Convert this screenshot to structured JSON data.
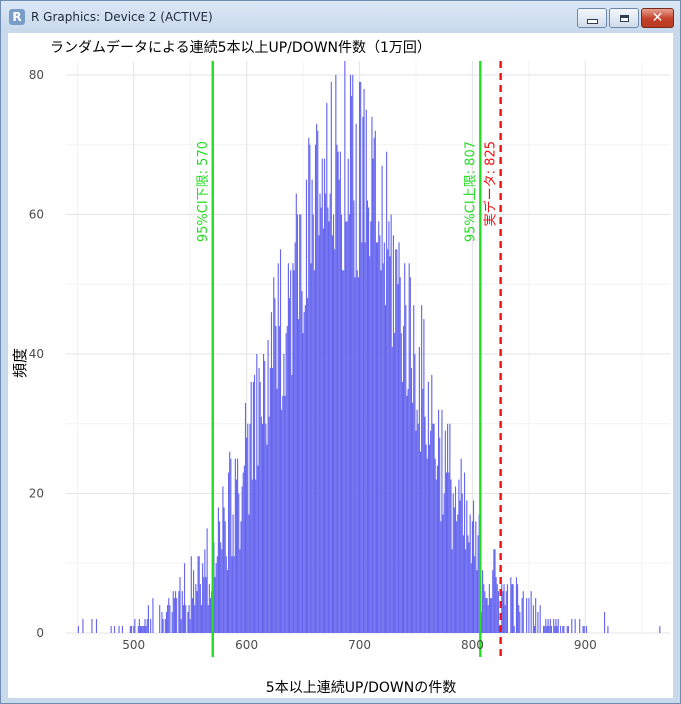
{
  "window": {
    "title": "R Graphics: Device 2 (ACTIVE)",
    "icon": "r-logo-icon",
    "buttons": {
      "minimize": "minimize-icon",
      "maximize": "maximize-icon",
      "close": "close-icon"
    }
  },
  "chart_data": {
    "type": "bar",
    "title": "ランダムデータによる連続5本以上UP/DOWN件数（1万回）",
    "xlabel": "5本以上連続UP/DOWNの件数",
    "ylabel": "頻度",
    "xlim": [
      440,
      975
    ],
    "ylim": [
      0,
      82
    ],
    "xticks": [
      500,
      600,
      700,
      800,
      900
    ],
    "yticks": [
      0,
      20,
      40,
      60,
      80
    ],
    "grid": true,
    "bar_color": "#6666ee",
    "vlines": [
      {
        "x": 570,
        "label": "95%CI下限: 570",
        "color": "#22dd22",
        "style": "solid"
      },
      {
        "x": 807,
        "label": "95%CI上限: 807",
        "color": "#22dd22",
        "style": "solid"
      },
      {
        "x": 825,
        "label": "実データ: 825",
        "color": "#ee1111",
        "style": "dashed"
      }
    ],
    "distribution_note": "per-integer frequency histogram; envelope peaks ~82 near 687"
  }
}
